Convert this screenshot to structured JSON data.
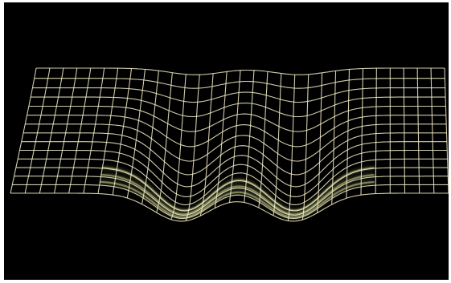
{
  "figure": {
    "background_color": "#000000",
    "line_color": "#f4efc8",
    "glow_color": "#e6f0a0",
    "shape": "wireframe-grid-with-two-wells"
  }
}
